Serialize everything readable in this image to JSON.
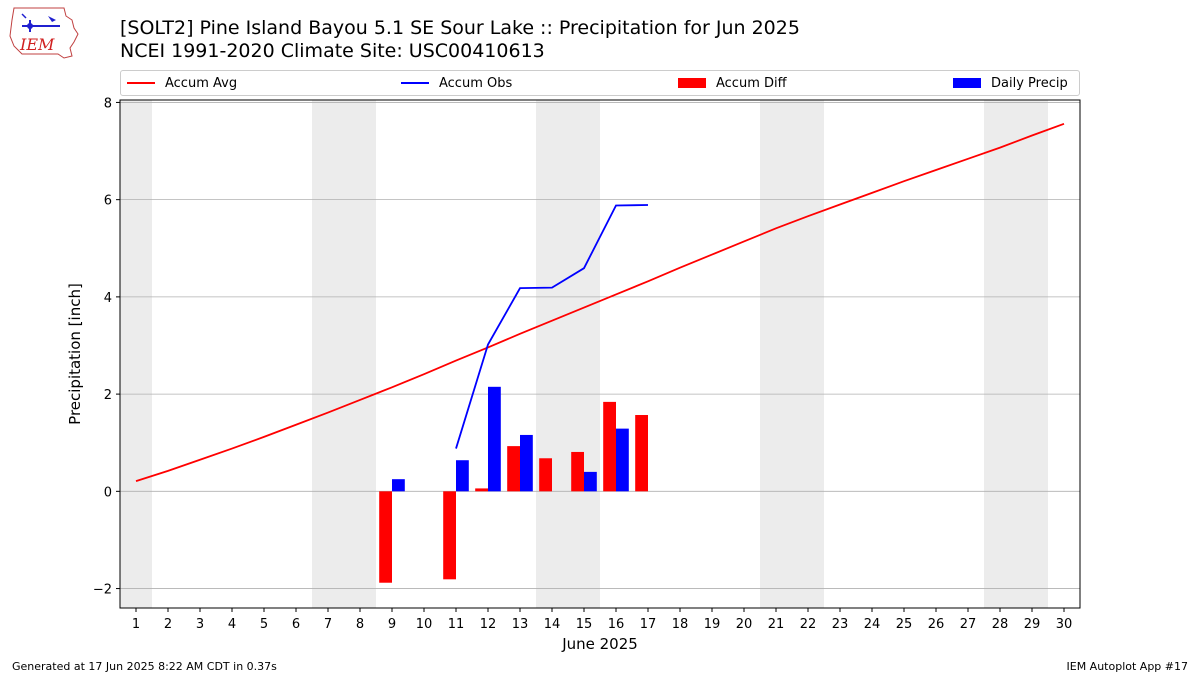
{
  "header": {
    "title_line1": "[SOLT2] Pine Island Bayou 5.1 SE Sour Lake :: Precipitation for Jun 2025",
    "title_line2": "NCEI 1991-2020 Climate Site: USC00410613",
    "logo_text": "IEM"
  },
  "footer": {
    "generated": "Generated at 17 Jun 2025 8:22 AM CDT in 0.37s",
    "app": "IEM Autoplot App #17"
  },
  "colors": {
    "avg": "#ff0000",
    "obs": "#0000ff",
    "diff": "#ff0000",
    "daily": "#0000ff",
    "weekend_shade": "#ececec",
    "grid": "#b0b0b0"
  },
  "chart_data": {
    "type": "bar",
    "xlabel": "June 2025",
    "ylabel": "Precipitation [inch]",
    "xlim": [
      0.5,
      30.5
    ],
    "ylim": [
      -2.4,
      8.05
    ],
    "yticks": [
      -2,
      0,
      2,
      4,
      6,
      8
    ],
    "x": [
      1,
      2,
      3,
      4,
      5,
      6,
      7,
      8,
      9,
      10,
      11,
      12,
      13,
      14,
      15,
      16,
      17,
      18,
      19,
      20,
      21,
      22,
      23,
      24,
      25,
      26,
      27,
      28,
      29,
      30
    ],
    "grid": "horizontal",
    "legend_position": "top",
    "weekend_days": [
      1,
      7,
      8,
      14,
      15,
      21,
      22,
      28,
      29
    ],
    "series": [
      {
        "name": "Accum Avg",
        "kind": "line",
        "x": [
          1,
          2,
          3,
          4,
          5,
          6,
          7,
          8,
          9,
          10,
          11,
          12,
          13,
          14,
          15,
          16,
          17,
          18,
          19,
          20,
          21,
          22,
          23,
          24,
          25,
          26,
          27,
          28,
          29,
          30
        ],
        "values": [
          0.21,
          0.42,
          0.65,
          0.88,
          1.12,
          1.37,
          1.62,
          1.88,
          2.14,
          2.41,
          2.69,
          2.96,
          3.24,
          3.51,
          3.78,
          4.05,
          4.32,
          4.6,
          4.87,
          5.14,
          5.41,
          5.66,
          5.9,
          6.14,
          6.38,
          6.61,
          6.84,
          7.07,
          7.32,
          7.56
        ]
      },
      {
        "name": "Accum Obs",
        "kind": "line",
        "x": [
          11,
          12,
          13,
          14,
          15,
          16,
          17
        ],
        "values": [
          0.88,
          3.02,
          4.18,
          4.19,
          4.59,
          5.88,
          5.89
        ]
      },
      {
        "name": "Accum Diff",
        "kind": "bar",
        "x": [
          9,
          11,
          12,
          13,
          14,
          15,
          16,
          17
        ],
        "values": [
          -1.88,
          -1.81,
          0.06,
          0.93,
          0.68,
          0.81,
          1.84,
          1.57
        ]
      },
      {
        "name": "Daily Precip",
        "kind": "bar",
        "x": [
          9,
          11,
          12,
          13,
          15,
          16
        ],
        "values": [
          0.25,
          0.64,
          2.15,
          1.16,
          0.4,
          1.29
        ]
      }
    ]
  }
}
